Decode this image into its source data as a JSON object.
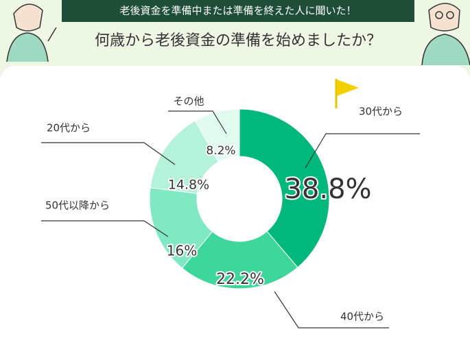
{
  "header": {
    "banner": "老後資金を準備中または準備を終えた人に聞いた！",
    "question": "何歳から老後資金の準備を始めましたか？"
  },
  "chart_data": {
    "type": "donut",
    "categories": [
      "30代から",
      "40代から",
      "50代以降から",
      "20代から",
      "その他"
    ],
    "values": [
      38.8,
      22.2,
      16,
      14.8,
      8.2
    ],
    "value_labels": [
      "38.8%",
      "22.2%",
      "16%",
      "14.8%",
      "8.2%"
    ],
    "colors": [
      "#00b87b",
      "#3ed69b",
      "#80e8c2",
      "#b4f2da",
      "#e2fbf1"
    ]
  }
}
